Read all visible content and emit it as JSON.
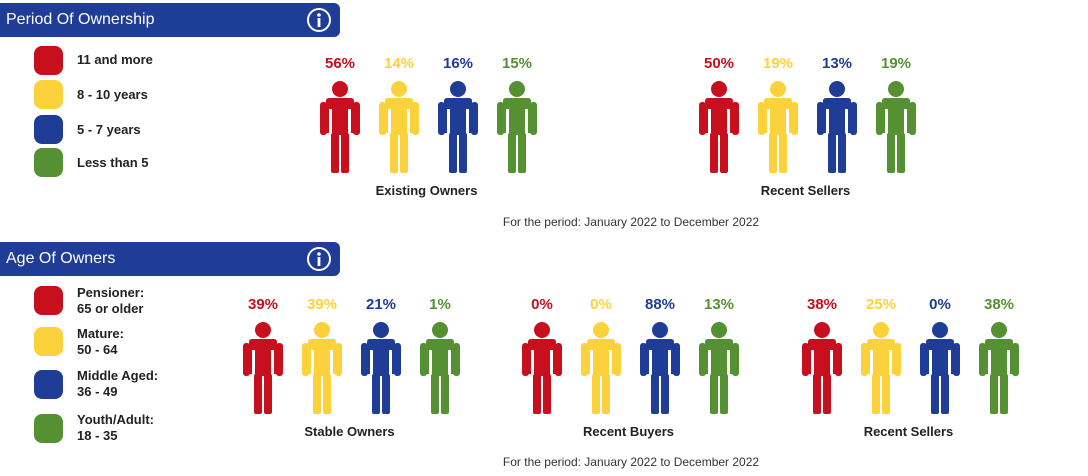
{
  "colors": {
    "header": "#1f3c96",
    "red": "#c80f1e",
    "yellow": "#fcd23c",
    "blue": "#1f3c96",
    "green": "#559132"
  },
  "icons": {
    "info": "info-icon",
    "person": "person-icon"
  },
  "sections": [
    {
      "title": "Period Of Ownership",
      "legend": [
        {
          "label": "11 and more",
          "color": "#c80f1e"
        },
        {
          "label": "8 - 10 years",
          "color": "#fcd23c"
        },
        {
          "label": "5 - 7 years",
          "color": "#1f3c96"
        },
        {
          "label": "Less than 5",
          "color": "#559132"
        }
      ],
      "period": "For the period: January 2022 to December 2022"
    },
    {
      "title": "Age Of Owners",
      "legend": [
        {
          "label": "Pensioner:\n65 or older",
          "color": "#c80f1e"
        },
        {
          "label": "Mature:\n50 - 64",
          "color": "#fcd23c"
        },
        {
          "label": "Middle Aged:\n36 - 49",
          "color": "#1f3c96"
        },
        {
          "label": "Youth/Adult:\n18 - 35",
          "color": "#559132"
        }
      ],
      "period": "For the period: January 2022 to December 2022"
    }
  ],
  "chart_data": [
    {
      "type": "bar",
      "title": "Period Of Ownership",
      "categories": [
        "11 and more",
        "8 - 10 years",
        "5 - 7 years",
        "Less than 5"
      ],
      "series": [
        {
          "name": "Existing Owners",
          "values": [
            56,
            14,
            16,
            15
          ]
        },
        {
          "name": "Recent Sellers",
          "values": [
            50,
            19,
            13,
            19
          ]
        }
      ],
      "unit": "%"
    },
    {
      "type": "bar",
      "title": "Age Of Owners",
      "categories": [
        "Pensioner: 65 or older",
        "Mature: 50 - 64",
        "Middle Aged: 36 - 49",
        "Youth/Adult: 18 - 35"
      ],
      "series": [
        {
          "name": "Stable Owners",
          "values": [
            39,
            39,
            21,
            1
          ]
        },
        {
          "name": "Recent Buyers",
          "values": [
            0,
            0,
            88,
            13
          ]
        },
        {
          "name": "Recent Sellers",
          "values": [
            38,
            25,
            0,
            38
          ]
        }
      ],
      "unit": "%"
    }
  ]
}
